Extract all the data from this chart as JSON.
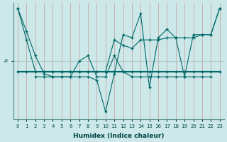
{
  "xlabel": "Humidex (Indice chaleur)",
  "bg_color": "#cce8e8",
  "line_color": "#006868",
  "grid_color_v": "#c8a8a8",
  "grid_color_h": "#a0c0c0",
  "xlim": [
    -0.5,
    23.5
  ],
  "ylim": [
    -5.5,
    5.5
  ],
  "ytick_labels": [
    "-0"
  ],
  "ytick_values": [
    0
  ],
  "xticks": [
    0,
    1,
    2,
    3,
    4,
    5,
    6,
    7,
    8,
    9,
    10,
    11,
    12,
    13,
    14,
    15,
    16,
    17,
    18,
    19,
    20,
    21,
    22,
    23
  ],
  "series1": [
    5.0,
    2.8,
    0.5,
    -1.2,
    -1.5,
    -1.5,
    -1.5,
    -1.5,
    -1.5,
    -1.8,
    -4.8,
    -1.2,
    2.5,
    2.2,
    4.5,
    -2.5,
    2.2,
    3.0,
    2.2,
    -1.5,
    2.5,
    2.5,
    2.5,
    5.0
  ],
  "series2": [
    -1.0,
    -1.0,
    -1.0,
    -1.0,
    -1.0,
    -1.0,
    -1.0,
    -1.0,
    -1.0,
    -1.0,
    -1.0,
    -1.0,
    -1.0,
    -1.0,
    -1.0,
    -1.0,
    -1.0,
    -1.0,
    -1.0,
    -1.0,
    -1.0,
    -1.0,
    -1.0,
    -1.0
  ],
  "series3": [
    5.0,
    2.0,
    -1.0,
    -1.0,
    -1.0,
    -1.0,
    -1.0,
    -1.0,
    -1.0,
    -1.0,
    -1.0,
    2.0,
    1.5,
    1.2,
    2.0,
    2.0,
    2.0,
    2.2,
    2.2,
    2.2,
    2.2,
    2.5,
    2.5,
    5.0
  ],
  "series4": [
    null,
    null,
    -1.5,
    -1.5,
    -1.5,
    -1.5,
    -1.5,
    0.0,
    0.5,
    -1.5,
    -1.5,
    0.5,
    -1.0,
    -1.5,
    -1.5,
    -1.5,
    -1.5,
    -1.5,
    -1.5,
    -1.5,
    -1.5,
    -1.5,
    -1.5,
    null
  ]
}
